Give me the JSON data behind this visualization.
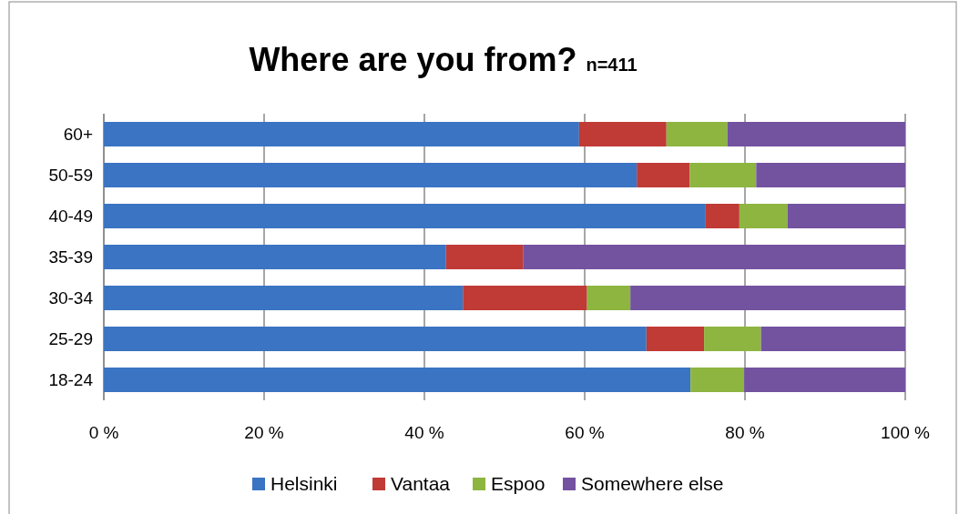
{
  "chart_data": {
    "type": "bar",
    "orientation": "horizontal",
    "stacked": true,
    "title": "Where are you from?",
    "subtitle": "n=411",
    "categories": [
      "60+",
      "50-59",
      "40-49",
      "35-39",
      "30-34",
      "25-29",
      "18-24"
    ],
    "series": [
      {
        "name": "Helsinki",
        "color": "#3a74c2",
        "values": [
          59.3,
          66.5,
          75.1,
          42.7,
          44.8,
          67.7,
          73.2
        ]
      },
      {
        "name": "Vantaa",
        "color": "#c03a36",
        "values": [
          10.9,
          6.6,
          4.2,
          9.6,
          15.5,
          7.2,
          0
        ]
      },
      {
        "name": "Espoo",
        "color": "#8db540",
        "values": [
          7.6,
          8.3,
          6.0,
          0,
          5.4,
          7.1,
          6.7
        ]
      },
      {
        "name": "Somewhere else",
        "color": "#7352a0",
        "values": [
          22.2,
          18.6,
          14.7,
          47.7,
          34.3,
          18.0,
          20.1
        ]
      }
    ],
    "xlim": [
      0,
      100
    ],
    "xticks": [
      {
        "value": 0,
        "label": "0 %"
      },
      {
        "value": 20,
        "label": "20 %"
      },
      {
        "value": 40,
        "label": "40 %"
      },
      {
        "value": 60,
        "label": "60 %"
      },
      {
        "value": 80,
        "label": "80 %"
      },
      {
        "value": 100,
        "label": "100 %"
      }
    ],
    "grid": "x",
    "legend": "bottom"
  }
}
